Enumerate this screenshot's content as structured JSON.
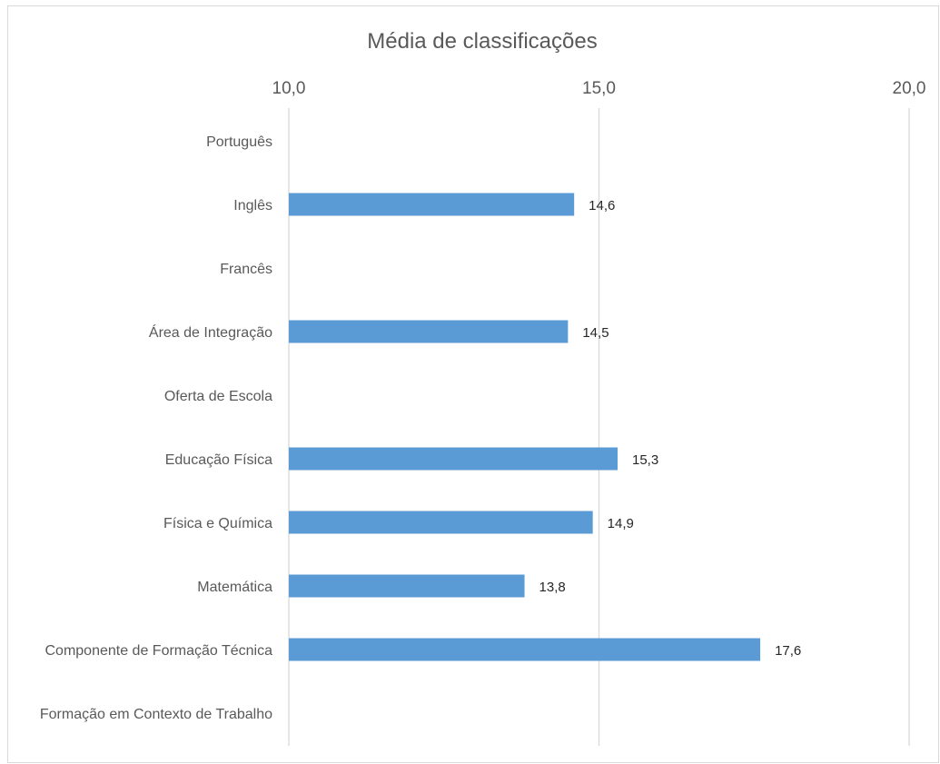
{
  "chart_data": {
    "type": "bar",
    "orientation": "horizontal",
    "title": "Média de classificações",
    "xlabel": "",
    "ylabel": "",
    "xlim": [
      10,
      20
    ],
    "x_ticks": [
      "10,0",
      "15,0",
      "20,0"
    ],
    "x_tick_values": [
      10,
      15,
      20
    ],
    "x_axis_position": "top",
    "grid": true,
    "legend": "none",
    "bar_color": "#5b9bd5",
    "categories": [
      "Português",
      "Inglês",
      "Francês",
      "Área de Integração",
      "Oferta de Escola",
      "Educação Física",
      "Física e Química",
      "Matemática",
      "Componente de Formação Técnica",
      "Formação em Contexto de Trabalho"
    ],
    "values": [
      null,
      14.6,
      null,
      14.5,
      null,
      15.3,
      14.9,
      13.8,
      17.6,
      null
    ],
    "value_labels": [
      "",
      "14,6",
      "",
      "14,5",
      "",
      "15,3",
      "14,9",
      "13,8",
      "17,6",
      ""
    ]
  }
}
